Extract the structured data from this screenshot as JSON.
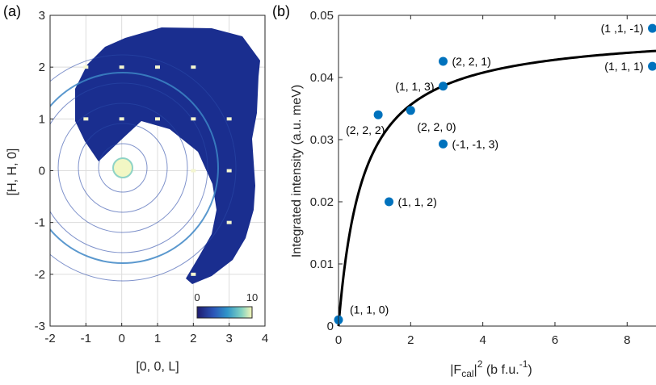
{
  "panels": {
    "a": "(a)",
    "b": "(b)"
  },
  "chart_data": [
    {
      "type": "heatmap",
      "panel_label": "(a)",
      "xlabel": "[0, 0, L]",
      "ylabel": "[H, H, 0]",
      "xlim": [
        -2,
        4
      ],
      "ylim": [
        -3,
        3
      ],
      "xticks": [
        "-2",
        "-1",
        "0",
        "1",
        "2",
        "3",
        "4"
      ],
      "yticks": [
        "3",
        "2",
        "1",
        "0",
        "-1",
        "-2",
        "-3"
      ],
      "grid": true,
      "colorbar": {
        "min": "0",
        "max": "10",
        "colors": [
          "#1d1b6f",
          "#2b55b8",
          "#2f95c9",
          "#7fd0c1",
          "#f6f6b8"
        ]
      },
      "background_color": "#1a2e8f",
      "bragg_peaks": [
        {
          "L": -1,
          "H": 2
        },
        {
          "L": 0,
          "H": 2
        },
        {
          "L": 1,
          "H": 2
        },
        {
          "L": 2,
          "H": 2
        },
        {
          "L": -1,
          "H": 1
        },
        {
          "L": 0,
          "H": 1
        },
        {
          "L": 1,
          "H": 1
        },
        {
          "L": 2,
          "H": 1
        },
        {
          "L": 3,
          "H": 1
        },
        {
          "L": 2,
          "H": 0
        },
        {
          "L": 3,
          "H": 0
        },
        {
          "L": 3,
          "H": -1
        },
        {
          "L": 2,
          "H": -2
        }
      ]
    },
    {
      "type": "scatter",
      "panel_label": "(b)",
      "xlabel_main": "|F",
      "xlabel_sub": "cal",
      "xlabel_sup": "2",
      "xlabel_units": " (b f.u.",
      "xlabel_units_sup": "-1",
      "xlabel_close": ")",
      "ylabel": "Integrated intensity (a.u. meV)",
      "xlim": [
        0,
        8.8
      ],
      "ylim": [
        0,
        0.05
      ],
      "xticks": [
        "0",
        "2",
        "4",
        "6",
        "8"
      ],
      "yticks": [
        "0",
        "0.01",
        "0.02",
        "0.03",
        "0.04",
        "0.05"
      ],
      "marker_color": "#0072bd",
      "fit_curve": {
        "a": 0.0477,
        "b": 0.68
      },
      "points": [
        {
          "x": 0.0,
          "y": 0.001,
          "label": "(1, 1, 0)",
          "pos": "right-above"
        },
        {
          "x": 1.4,
          "y": 0.02,
          "label": "(1, 1, 2)",
          "pos": "right"
        },
        {
          "x": 1.1,
          "y": 0.034,
          "label": "(2, 2, 2)",
          "pos": "below-left"
        },
        {
          "x": 2.0,
          "y": 0.0347,
          "label": "(2, 2, 0)",
          "pos": "below-right"
        },
        {
          "x": 2.9,
          "y": 0.0293,
          "label": "(-1, -1, 3)",
          "pos": "right"
        },
        {
          "x": 2.9,
          "y": 0.0386,
          "label": "(1, 1, 3)",
          "pos": "left"
        },
        {
          "x": 2.9,
          "y": 0.0426,
          "label": "(2, 2, 1)",
          "pos": "right"
        },
        {
          "x": 8.7,
          "y": 0.0479,
          "label": "(1 ,1, -1)",
          "pos": "left"
        },
        {
          "x": 8.7,
          "y": 0.0418,
          "label": "(1, 1, 1)",
          "pos": "left"
        }
      ]
    }
  ]
}
